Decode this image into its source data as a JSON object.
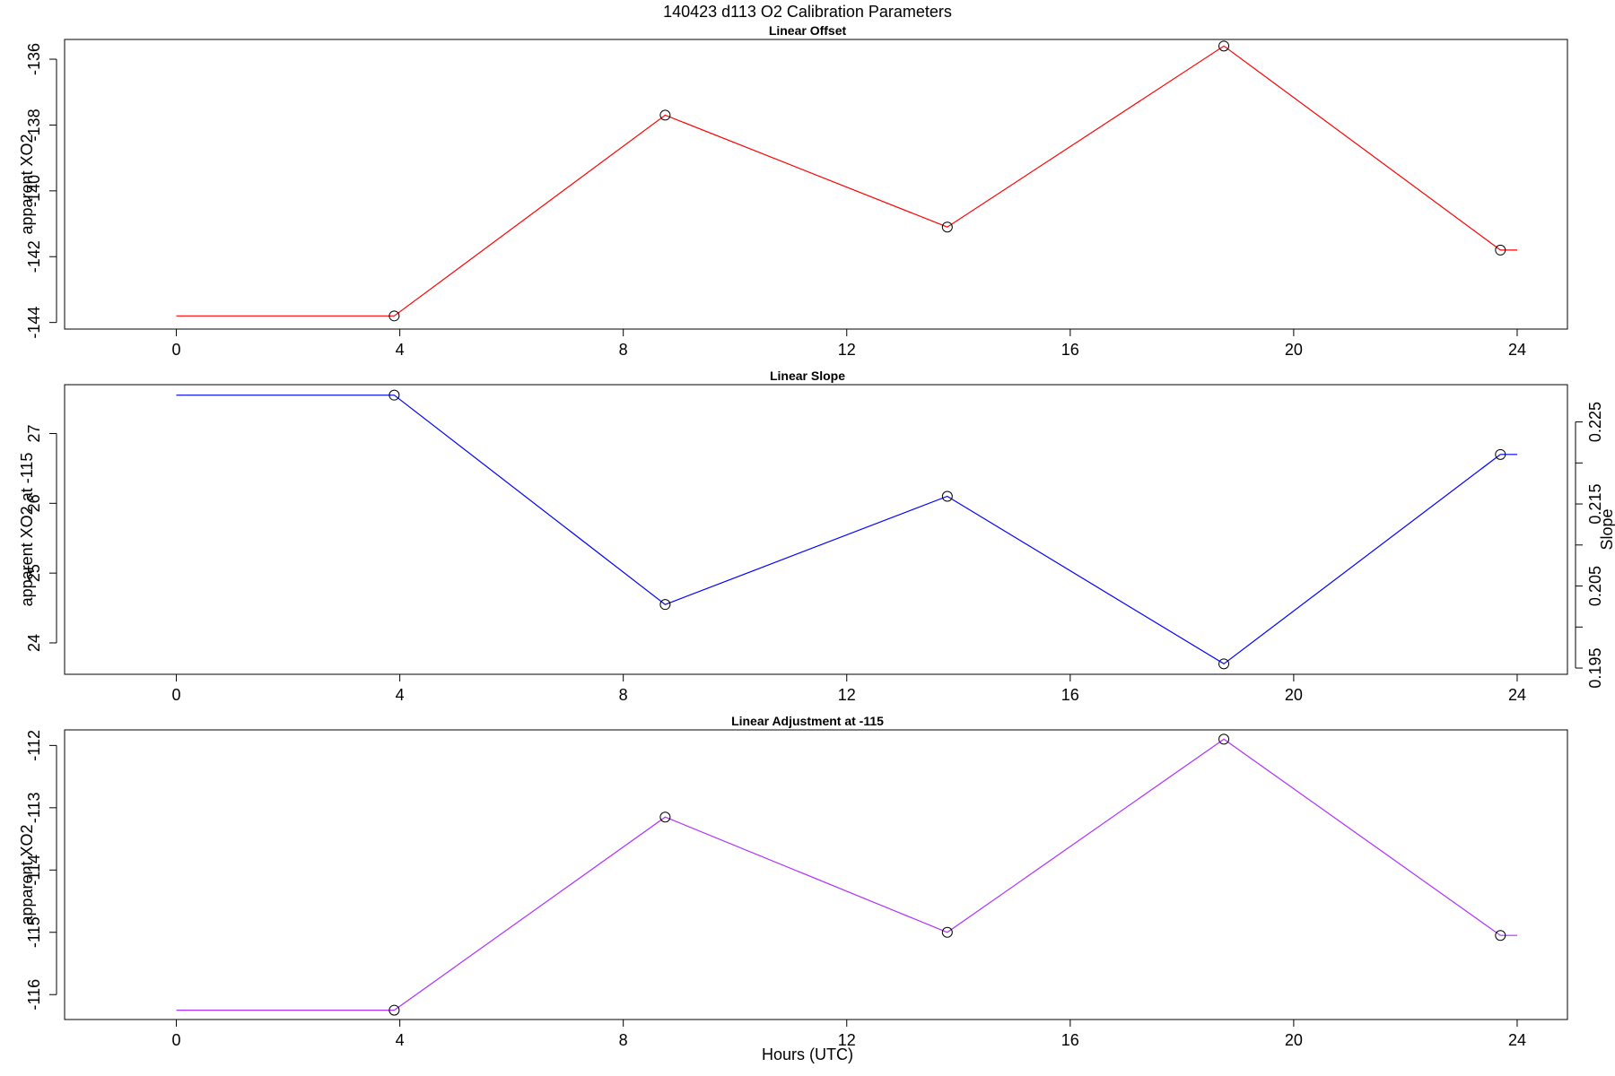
{
  "title": "140423   d113   O2 Calibration Parameters",
  "xlabel": "Hours (UTC)",
  "chart_data": [
    {
      "type": "line",
      "title": "Linear Offset",
      "xlabel": "",
      "ylabel": "apparent XO2",
      "xlim": [
        -2,
        24.9
      ],
      "ylim": [
        -144.2,
        -135.4
      ],
      "xticks": [
        0,
        4,
        8,
        12,
        16,
        20,
        24
      ],
      "yticks": [
        -144,
        -142,
        -140,
        -138,
        -136
      ],
      "grid": false,
      "series": [
        {
          "color": "#ff0000",
          "points": [
            {
              "x": 3.9,
              "y": -143.8
            },
            {
              "x": 8.75,
              "y": -137.7
            },
            {
              "x": 13.8,
              "y": -141.1
            },
            {
              "x": 18.75,
              "y": -135.6
            },
            {
              "x": 23.7,
              "y": -141.8
            }
          ],
          "line_start": {
            "x": 0,
            "y": -143.8
          },
          "line_end": {
            "x": 24,
            "y": -141.8
          }
        }
      ]
    },
    {
      "type": "line",
      "title": "Linear Slope",
      "xlabel": "",
      "ylabel": "apparent XO2 at -115",
      "ylabel_right": "Slope",
      "xlim": [
        -2,
        24.9
      ],
      "ylim": [
        23.55,
        27.7
      ],
      "xticks": [
        0,
        4,
        8,
        12,
        16,
        20,
        24
      ],
      "yticks": [
        24,
        25,
        26,
        27
      ],
      "y2lim": [
        0.19424,
        0.22954
      ],
      "y2ticks": [
        0.195,
        0.2,
        0.205,
        0.21,
        0.215,
        0.22,
        0.225
      ],
      "y2ticklabels": [
        "0.195",
        "",
        "0.205",
        "",
        "0.215",
        "",
        "0.225"
      ],
      "grid": false,
      "series": [
        {
          "color": "#0000ff",
          "points": [
            {
              "x": 3.9,
              "y": 27.55
            },
            {
              "x": 8.75,
              "y": 24.55
            },
            {
              "x": 13.8,
              "y": 26.1
            },
            {
              "x": 18.75,
              "y": 23.7
            },
            {
              "x": 23.7,
              "y": 26.7
            }
          ],
          "line_start": {
            "x": 0,
            "y": 27.55
          },
          "line_end": {
            "x": 24,
            "y": 26.7
          }
        }
      ]
    },
    {
      "type": "line",
      "title": "Linear Adjustment at -115",
      "xlabel": "Hours (UTC)",
      "ylabel": "apparent XO2",
      "xlim": [
        -2,
        24.9
      ],
      "ylim": [
        -116.4,
        -111.75
      ],
      "xticks": [
        0,
        4,
        8,
        12,
        16,
        20,
        24
      ],
      "yticks": [
        -116,
        -115,
        -114,
        -113,
        -112
      ],
      "grid": false,
      "series": [
        {
          "color": "#b030ff",
          "points": [
            {
              "x": 3.9,
              "y": -116.25
            },
            {
              "x": 8.75,
              "y": -113.15
            },
            {
              "x": 13.8,
              "y": -115.0
            },
            {
              "x": 18.75,
              "y": -111.9
            },
            {
              "x": 23.7,
              "y": -115.05
            }
          ],
          "line_start": {
            "x": 0,
            "y": -116.25
          },
          "line_end": {
            "x": 24,
            "y": -115.05
          }
        }
      ]
    }
  ]
}
